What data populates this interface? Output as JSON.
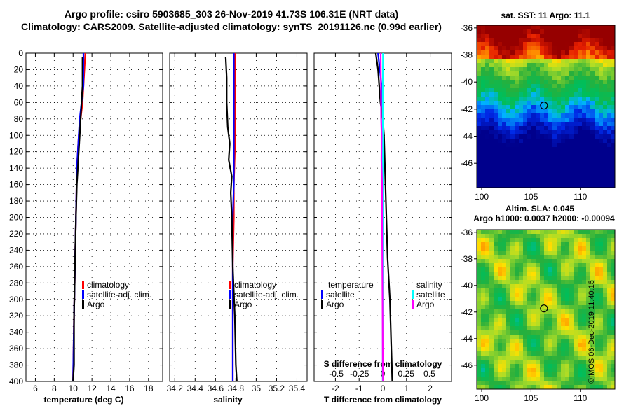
{
  "title_line1": "Argo profile: csiro 5903685_303 26-Nov-2019 41.73S 106.31E (NRT data)",
  "title_line2": "Climatology: CARS2009. Satellite-adjusted climatology: synTS_20191126.nc (0.99d earlier)",
  "footer_stamp": "©IMOS 06-Dec-2019 11:40:15",
  "colors": {
    "climatology": "#ff0000",
    "satellite": "#0000ff",
    "argo": "#000000",
    "sal_satellite": "#00ffff",
    "sal_argo": "#ff00ff"
  },
  "chart_data": [
    {
      "id": "temperature",
      "type": "line",
      "xlabel": "temperature (deg C)",
      "xlim": [
        5,
        19.5
      ],
      "xticks": [
        6,
        8,
        10,
        12,
        14,
        16,
        18
      ],
      "ylim": [
        400,
        0
      ],
      "yticks": [
        0,
        20,
        40,
        60,
        80,
        100,
        120,
        140,
        160,
        180,
        200,
        220,
        240,
        260,
        280,
        300,
        320,
        340,
        360,
        380,
        400
      ],
      "legend": [
        {
          "label": "climatology",
          "color": "#ff0000"
        },
        {
          "label": "satellite-adj. clim.",
          "color": "#0000ff"
        },
        {
          "label": "Argo",
          "color": "#000000"
        }
      ],
      "series": [
        {
          "name": "climatology",
          "color": "#ff0000",
          "depth": [
            0,
            20,
            40,
            60,
            80,
            100,
            140,
            200,
            260,
            320,
            400
          ],
          "values": [
            11.3,
            11.2,
            11.1,
            11.0,
            10.8,
            10.6,
            10.4,
            10.3,
            10.2,
            10.1,
            10.0
          ]
        },
        {
          "name": "satellite-adj. clim.",
          "color": "#0000ff",
          "depth": [
            0,
            20,
            40,
            60,
            80,
            100,
            140,
            200,
            260,
            320,
            400
          ],
          "values": [
            11.1,
            11.1,
            11.1,
            10.9,
            10.7,
            10.6,
            10.4,
            10.3,
            10.2,
            10.1,
            10.0
          ]
        },
        {
          "name": "Argo",
          "color": "#000000",
          "depth": [
            5,
            20,
            40,
            60,
            80,
            100,
            120,
            140,
            160,
            200,
            260,
            320,
            380,
            400
          ],
          "values": [
            11.0,
            11.0,
            11.0,
            10.9,
            10.8,
            10.7,
            10.6,
            10.5,
            10.4,
            10.3,
            10.2,
            10.1,
            10.1,
            10.0
          ]
        }
      ]
    },
    {
      "id": "salinity",
      "type": "line",
      "xlabel": "salinity",
      "xlim": [
        34.15,
        35.5
      ],
      "xticks": [
        34.2,
        34.4,
        34.6,
        34.8,
        35,
        35.2,
        35.4
      ],
      "xtick_labels": [
        "34.2",
        "34.4",
        "34.6",
        "34.8",
        "35",
        "35.2",
        "35.4"
      ],
      "ylim": [
        400,
        0
      ],
      "legend": [
        {
          "label": "climatology",
          "color": "#ff0000"
        },
        {
          "label": "satellite-adj. clim.",
          "color": "#0000ff"
        },
        {
          "label": "Argo",
          "color": "#000000"
        }
      ],
      "series": [
        {
          "name": "climatology",
          "color": "#ff0000",
          "depth": [
            0,
            40,
            80,
            120,
            160,
            200,
            260,
            320,
            380,
            400
          ],
          "values": [
            34.79,
            34.79,
            34.79,
            34.79,
            34.78,
            34.78,
            34.77,
            34.77,
            34.77,
            34.77
          ]
        },
        {
          "name": "satellite-adj. clim.",
          "color": "#0000ff",
          "depth": [
            0,
            40,
            80,
            120,
            160,
            200,
            260,
            320,
            380,
            400
          ],
          "values": [
            34.78,
            34.78,
            34.78,
            34.78,
            34.78,
            34.77,
            34.77,
            34.77,
            34.77,
            34.77
          ]
        },
        {
          "name": "Argo",
          "color": "#000000",
          "depth": [
            5,
            30,
            60,
            90,
            110,
            130,
            150,
            170,
            200,
            260,
            320,
            380,
            400
          ],
          "values": [
            34.7,
            34.71,
            34.71,
            34.72,
            34.74,
            34.73,
            34.76,
            34.75,
            34.76,
            34.77,
            34.79,
            34.8,
            34.81
          ]
        }
      ]
    },
    {
      "id": "difference",
      "type": "line",
      "xlabel": "T difference from climatology",
      "xlabel_top": "S difference from climatology",
      "xlim": [
        -2.9,
        2.9
      ],
      "xticks": [
        -2,
        -1,
        0,
        1,
        2
      ],
      "s_ticks": [
        -0.5,
        -0.25,
        0,
        0.25,
        0.5
      ],
      "s_tick_labels": [
        "-0.5",
        "-0.25",
        "0",
        "0.25",
        "0.5"
      ],
      "ylim": [
        400,
        0
      ],
      "legend_temperature": {
        "heading": "temperature",
        "items": [
          {
            "label": "satellite",
            "color": "#0000ff"
          },
          {
            "label": "Argo",
            "color": "#000000"
          }
        ]
      },
      "legend_salinity": {
        "heading": "salinity",
        "items": [
          {
            "label": "satellite",
            "color": "#00ffff"
          },
          {
            "label": "Argo",
            "color": "#ff00ff"
          }
        ]
      },
      "series": [
        {
          "name": "T satellite",
          "color": "#0000ff",
          "depth": [
            0,
            40,
            80,
            150,
            250,
            400
          ],
          "values": [
            -0.2,
            -0.05,
            0,
            0,
            0,
            0
          ]
        },
        {
          "name": "T Argo",
          "color": "#000000",
          "depth": [
            0,
            20,
            40,
            60,
            80,
            100,
            150,
            200,
            250,
            300,
            350,
            400
          ],
          "values": [
            -0.3,
            -0.2,
            -0.15,
            -0.1,
            0,
            0.05,
            0.1,
            0.15,
            0.2,
            0.3,
            0.35,
            0.4
          ]
        },
        {
          "name": "S satellite",
          "color": "#00ffff",
          "depth": [
            0,
            40,
            100,
            200,
            300,
            400
          ],
          "values": [
            0.01,
            0,
            0,
            0,
            0,
            0
          ]
        },
        {
          "name": "S Argo",
          "color": "#ff00ff",
          "depth": [
            0,
            40,
            80,
            100,
            130,
            160,
            200,
            260,
            320,
            380,
            400
          ],
          "values": [
            -0.09,
            -0.08,
            -0.07,
            -0.05,
            -0.06,
            -0.03,
            -0.03,
            -0.02,
            -0.01,
            0.0,
            0.01
          ]
        }
      ]
    },
    {
      "id": "sst_map",
      "type": "heatmap",
      "title": "sat. SST: 11 Argo: 11.1",
      "xlim": [
        99.5,
        113.5
      ],
      "ylim": [
        -47.8,
        -35.8
      ],
      "xticks": [
        100,
        105,
        110
      ],
      "yticks": [
        -36,
        -38,
        -40,
        -42,
        -44,
        -46
      ],
      "argo_position": {
        "lon": 106.31,
        "lat": -41.73
      }
    },
    {
      "id": "sla_map",
      "type": "heatmap",
      "title_line1": "Altim. SLA: 0.045",
      "title_line2": "Argo h1000: 0.0037 h2000: -0.00094",
      "xlim": [
        99.5,
        113.5
      ],
      "ylim": [
        -47.8,
        -35.8
      ],
      "xticks": [
        100,
        105,
        110
      ],
      "yticks": [
        -36,
        -38,
        -40,
        -42,
        -44,
        -46
      ],
      "argo_position": {
        "lon": 106.31,
        "lat": -41.73
      }
    }
  ]
}
